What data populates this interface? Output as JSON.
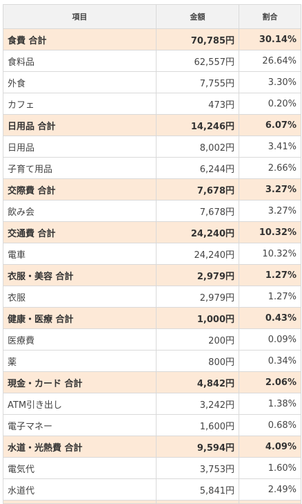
{
  "headers": {
    "item": "項目",
    "amount": "金額",
    "percent": "割合"
  },
  "colors": {
    "subtotal_bg": "#fde9d7",
    "header_bg": "#f2f2f2",
    "border": "#d9d9d9"
  },
  "rows": [
    {
      "type": "subtotal",
      "name": "食費 合計",
      "amount": "70,785円",
      "percent": "30.14%"
    },
    {
      "type": "item",
      "name": "食料品",
      "amount": "62,557円",
      "percent": "26.64%"
    },
    {
      "type": "item",
      "name": "外食",
      "amount": "7,755円",
      "percent": "3.30%"
    },
    {
      "type": "item",
      "name": "カフェ",
      "amount": "473円",
      "percent": "0.20%"
    },
    {
      "type": "subtotal",
      "name": "日用品 合計",
      "amount": "14,246円",
      "percent": "6.07%"
    },
    {
      "type": "item",
      "name": "日用品",
      "amount": "8,002円",
      "percent": "3.41%"
    },
    {
      "type": "item",
      "name": "子育て用品",
      "amount": "6,244円",
      "percent": "2.66%"
    },
    {
      "type": "subtotal",
      "name": "交際費 合計",
      "amount": "7,678円",
      "percent": "3.27%"
    },
    {
      "type": "item",
      "name": "飲み会",
      "amount": "7,678円",
      "percent": "3.27%"
    },
    {
      "type": "subtotal",
      "name": "交通費 合計",
      "amount": "24,240円",
      "percent": "10.32%"
    },
    {
      "type": "item",
      "name": "電車",
      "amount": "24,240円",
      "percent": "10.32%"
    },
    {
      "type": "subtotal",
      "name": "衣服・美容 合計",
      "amount": "2,979円",
      "percent": "1.27%"
    },
    {
      "type": "item",
      "name": "衣服",
      "amount": "2,979円",
      "percent": "1.27%"
    },
    {
      "type": "subtotal",
      "name": "健康・医療 合計",
      "amount": "1,000円",
      "percent": "0.43%"
    },
    {
      "type": "item",
      "name": "医療費",
      "amount": "200円",
      "percent": "0.09%"
    },
    {
      "type": "item",
      "name": "薬",
      "amount": "800円",
      "percent": "0.34%"
    },
    {
      "type": "subtotal",
      "name": "現金・カード 合計",
      "amount": "4,842円",
      "percent": "2.06%"
    },
    {
      "type": "item",
      "name": "ATM引き出し",
      "amount": "3,242円",
      "percent": "1.38%"
    },
    {
      "type": "item",
      "name": "電子マネー",
      "amount": "1,600円",
      "percent": "0.68%"
    },
    {
      "type": "subtotal",
      "name": "水道・光熱費 合計",
      "amount": "9,594円",
      "percent": "4.09%"
    },
    {
      "type": "item",
      "name": "電気代",
      "amount": "3,753円",
      "percent": "1.60%"
    },
    {
      "type": "item",
      "name": "水道代",
      "amount": "5,841円",
      "percent": "2.49%"
    }
  ]
}
